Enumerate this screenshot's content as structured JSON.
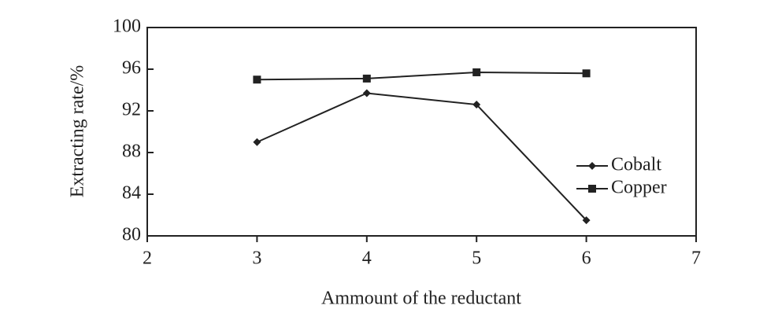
{
  "chart_data": {
    "type": "line",
    "x_label": "Ammount of the reductant",
    "y_label": "Extracting rate/%",
    "x": [
      3,
      4,
      5,
      6
    ],
    "series": [
      {
        "name": "Cobalt",
        "color": "#222222",
        "marker": "diamond",
        "values": [
          89,
          93.7,
          92.6,
          81.5
        ]
      },
      {
        "name": "Copper",
        "color": "#222222",
        "marker": "square",
        "values": [
          95,
          95.1,
          95.7,
          95.6
        ]
      }
    ],
    "xlim": [
      2,
      7
    ],
    "xticks": [
      2,
      3,
      4,
      5,
      6,
      7
    ],
    "ylim": [
      80,
      100
    ],
    "yticks": [
      80,
      84,
      88,
      92,
      96,
      100
    ],
    "legend": "right"
  }
}
